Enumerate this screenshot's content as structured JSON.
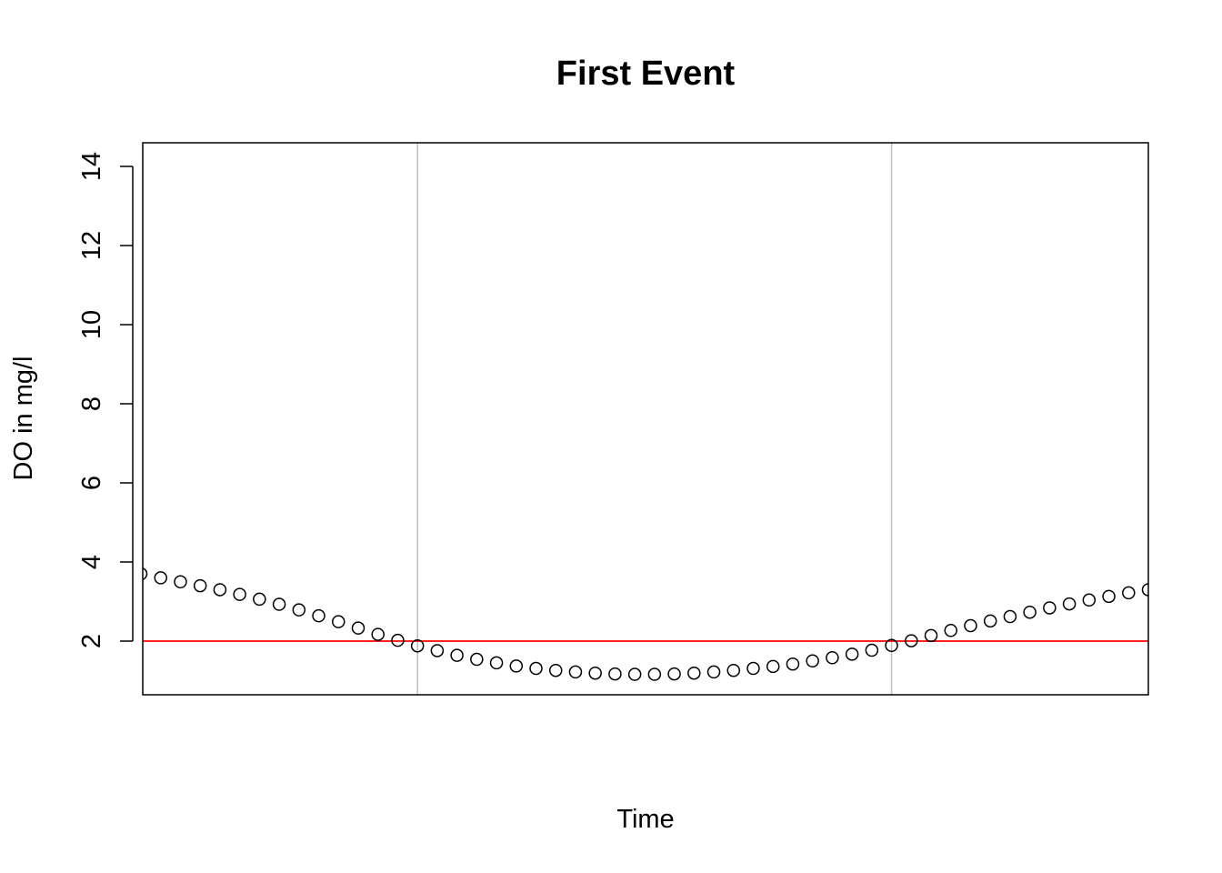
{
  "chart_data": {
    "type": "scatter",
    "title": "First Event",
    "xlabel": "Time",
    "ylabel": "DO in mg/l",
    "ylim": [
      0.8,
      14.8
    ],
    "y_ticks": [
      2,
      4,
      6,
      8,
      10,
      12,
      14
    ],
    "x_index_range": [
      0,
      52
    ],
    "vertical_gridlines_at_index": [
      14,
      38
    ],
    "gridline_color": "#bebebe",
    "threshold": {
      "value": 2,
      "color": "#ff0000"
    },
    "marker": "open-circle",
    "marker_color": "#000000",
    "series": [
      {
        "values": [
          3.7,
          3.6,
          3.5,
          3.4,
          3.3,
          3.18,
          3.06,
          2.93,
          2.79,
          2.64,
          2.49,
          2.33,
          2.17,
          2.02,
          1.88,
          1.76,
          1.64,
          1.54,
          1.45,
          1.37,
          1.31,
          1.26,
          1.22,
          1.19,
          1.17,
          1.16,
          1.16,
          1.17,
          1.19,
          1.22,
          1.26,
          1.31,
          1.36,
          1.42,
          1.5,
          1.58,
          1.67,
          1.77,
          1.89,
          2.01,
          2.14,
          2.27,
          2.39,
          2.51,
          2.62,
          2.73,
          2.84,
          2.94,
          3.04,
          3.13,
          3.22,
          3.3
        ]
      }
    ]
  }
}
